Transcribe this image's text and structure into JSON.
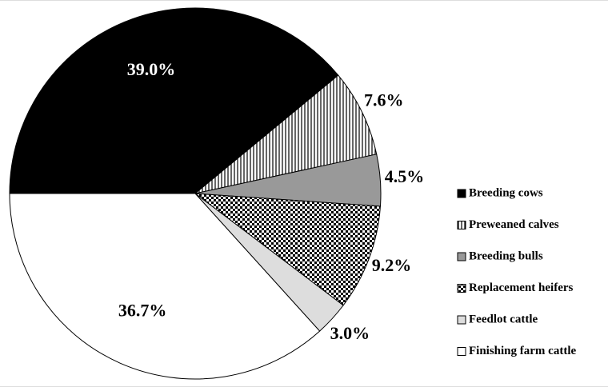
{
  "chart_data": {
    "type": "pie",
    "categories": [
      "Breeding cows",
      "Preweaned calves",
      "Breeding bulls",
      "Replacement heifers",
      "Feedlot cattle",
      "Finishing farm cattle"
    ],
    "values": [
      39.0,
      7.6,
      4.5,
      9.2,
      3.0,
      36.7
    ],
    "value_labels": [
      "39.0%",
      "7.6%",
      "4.5%",
      "9.2%",
      "3.0%",
      "36.7%"
    ],
    "fills": [
      "#000000",
      "vertical-stripes",
      "#999999",
      "checker",
      "#dddddd",
      "#ffffff"
    ],
    "legend": "right"
  }
}
